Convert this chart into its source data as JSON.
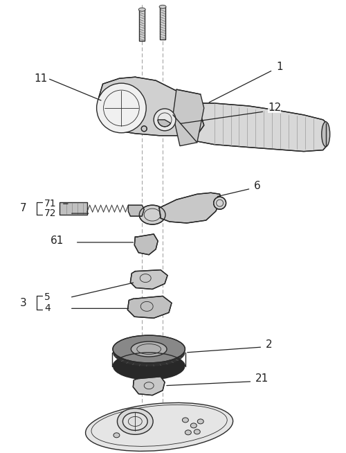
{
  "bg_color": "#ffffff",
  "line_color": "#2a2a2a",
  "label_color": "#222222",
  "fig_width": 5.0,
  "fig_height": 6.54,
  "dpi": 100
}
